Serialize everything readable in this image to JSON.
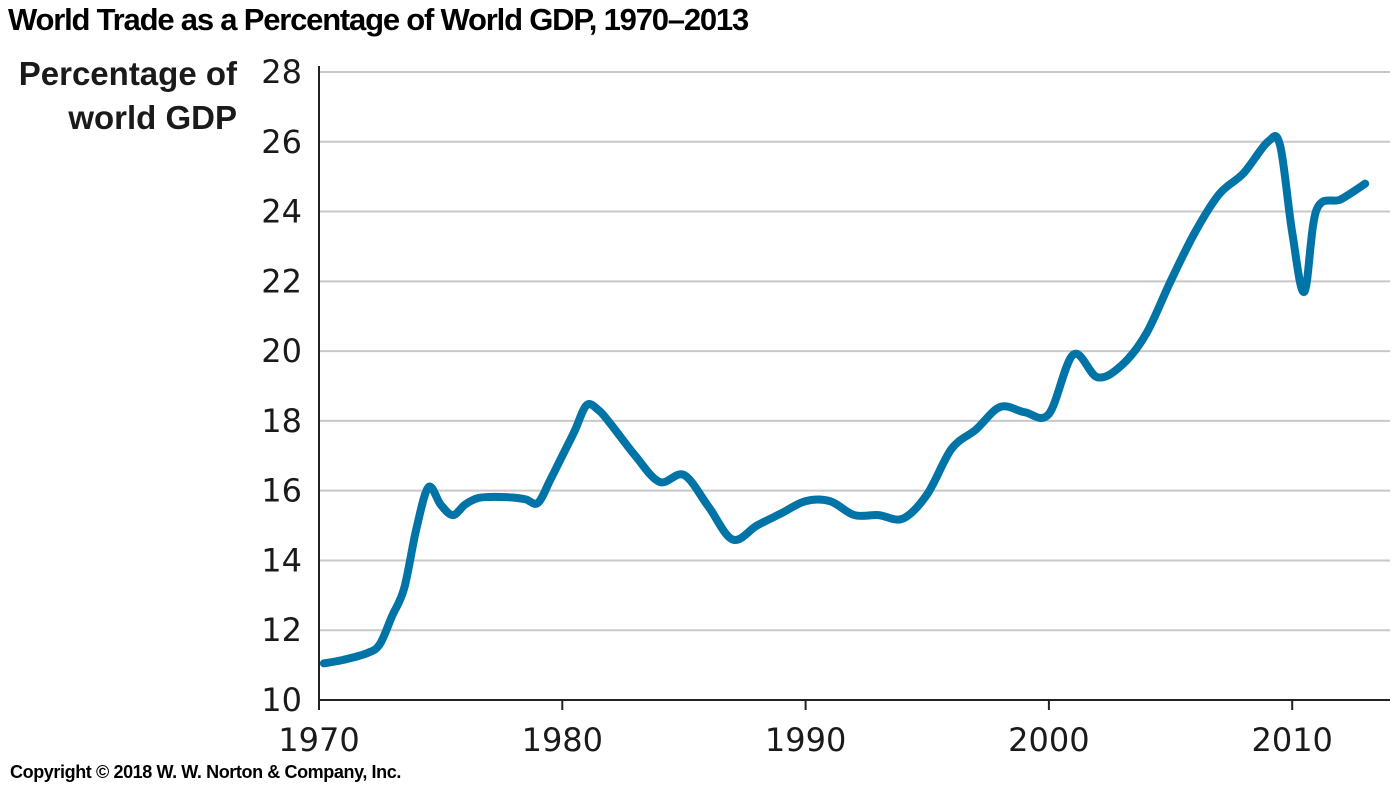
{
  "colors": {
    "line": "#0074a6",
    "grid": "#c8c8c8",
    "axis": "#222222",
    "text": "#1a1a1a"
  },
  "chart_data": {
    "type": "line",
    "title": "World Trade as a Percentage of World GDP, 1970–2013",
    "ylabel_lines": [
      "Percentage of",
      "world GDP"
    ],
    "xlabel": "",
    "xlim": [
      1970,
      2013
    ],
    "ylim": [
      10,
      28
    ],
    "xticks": [
      1970,
      1980,
      1990,
      2000,
      2010
    ],
    "yticks": [
      10,
      12,
      14,
      16,
      18,
      20,
      22,
      24,
      26,
      28
    ],
    "grid": true,
    "series": [
      {
        "x": [
          1970.2,
          1971,
          1972,
          1972.5,
          1973,
          1973.5,
          1974,
          1974.5,
          1975,
          1975.5,
          1976,
          1976.5,
          1977,
          1977.5,
          1978,
          1978.5,
          1979,
          1979.5,
          1980,
          1980.5,
          1981,
          1981.5,
          1982,
          1983,
          1984,
          1985,
          1986,
          1987,
          1988,
          1989,
          1990,
          1991,
          1992,
          1993,
          1994,
          1995,
          1996,
          1997,
          1998,
          1999,
          2000,
          2001,
          2002,
          2003,
          2004,
          2005,
          2006,
          2007,
          2008,
          2009,
          2009.5,
          2010,
          2010.5,
          2011,
          2012,
          2013
        ],
        "values": [
          11.05,
          11.15,
          11.35,
          11.6,
          12.4,
          13.2,
          14.9,
          16.1,
          15.6,
          15.3,
          15.6,
          15.78,
          15.82,
          15.82,
          15.8,
          15.75,
          15.65,
          16.3,
          17.0,
          17.7,
          18.45,
          18.3,
          17.9,
          17.0,
          16.25,
          16.45,
          15.55,
          14.6,
          15.0,
          15.35,
          15.7,
          15.7,
          15.3,
          15.3,
          15.2,
          15.9,
          17.2,
          17.75,
          18.4,
          18.25,
          18.2,
          19.9,
          19.25,
          19.6,
          20.5,
          22.0,
          23.4,
          24.5,
          25.1,
          26.0,
          25.9,
          23.4,
          21.7,
          24.05,
          24.35,
          24.8
        ]
      }
    ]
  },
  "footer": {
    "copyright": "Copyright © 2018 W. W. Norton & Company, Inc."
  }
}
